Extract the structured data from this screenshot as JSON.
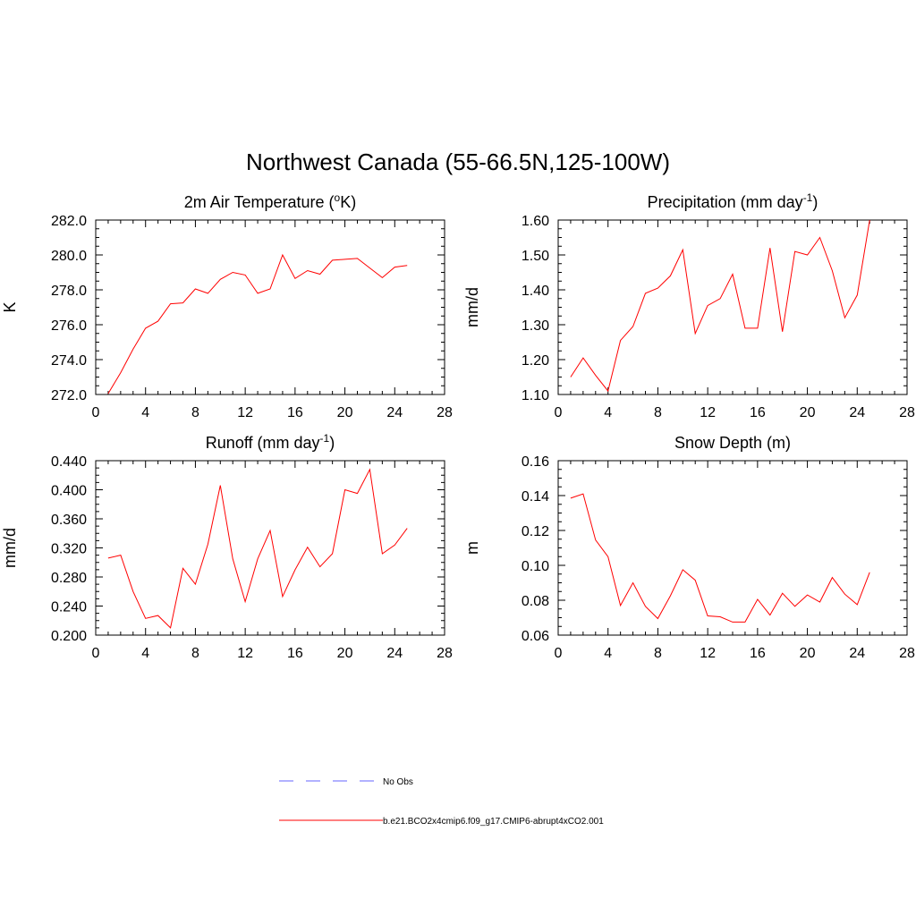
{
  "title": "Northwest Canada (55-66.5N,125-100W)",
  "colors": {
    "series": "#ff0000",
    "obs": "#9999ff",
    "axis": "#000000"
  },
  "legend": {
    "entries": [
      {
        "label": "No Obs",
        "style": "dashed",
        "color": "#9999ff"
      },
      {
        "label": "b.e21.BCO2x4cmip6.f09_g17.CMIP6-abrupt4xCO2.001",
        "style": "solid",
        "color": "#ff0000"
      }
    ]
  },
  "chart_data": [
    {
      "type": "line",
      "title": "2m Air Temperature (",
      "title_sup": "o",
      "title_end": "K)",
      "ylabel": "K",
      "xlim": [
        0,
        28
      ],
      "ylim": [
        272.0,
        282.0
      ],
      "xticks": [
        0,
        4,
        8,
        12,
        16,
        20,
        24,
        28
      ],
      "yticks": [
        "272.0",
        "274.0",
        "276.0",
        "278.0",
        "280.0",
        "282.0"
      ],
      "x": [
        1,
        2,
        3,
        4,
        5,
        6,
        7,
        8,
        9,
        10,
        11,
        12,
        13,
        14,
        15,
        16,
        17,
        18,
        19,
        20,
        21,
        22,
        23,
        24,
        25
      ],
      "series": [
        {
          "values": [
            272.05,
            273.25,
            274.6,
            275.8,
            276.2,
            277.2,
            277.25,
            278.05,
            277.8,
            278.6,
            279.0,
            278.85,
            277.8,
            278.05,
            280.0,
            278.65,
            279.1,
            278.9,
            279.7,
            279.75,
            279.8,
            279.25,
            278.7,
            279.3,
            279.4
          ]
        }
      ]
    },
    {
      "type": "line",
      "title": "Precipitation (mm day",
      "title_sup": "-1",
      "title_end": ")",
      "ylabel": "mm/d",
      "xlim": [
        0,
        28
      ],
      "ylim": [
        1.1,
        1.6
      ],
      "xticks": [
        0,
        4,
        8,
        12,
        16,
        20,
        24,
        28
      ],
      "yticks": [
        "1.10",
        "1.20",
        "1.30",
        "1.40",
        "1.50",
        "1.60"
      ],
      "x": [
        1,
        2,
        3,
        4,
        5,
        6,
        7,
        8,
        9,
        10,
        11,
        12,
        13,
        14,
        15,
        16,
        17,
        18,
        19,
        20,
        21,
        22,
        23,
        24,
        25
      ],
      "series": [
        {
          "values": [
            1.15,
            1.205,
            1.155,
            1.11,
            1.255,
            1.295,
            1.39,
            1.405,
            1.44,
            1.515,
            1.275,
            1.355,
            1.375,
            1.445,
            1.29,
            1.29,
            1.52,
            1.28,
            1.51,
            1.5,
            1.55,
            1.455,
            1.32,
            1.385,
            1.6
          ]
        }
      ]
    },
    {
      "type": "line",
      "title": "Runoff (mm day",
      "title_sup": "-1",
      "title_end": ")",
      "ylabel": "mm/d",
      "xlim": [
        0,
        28
      ],
      "ylim": [
        0.2,
        0.44
      ],
      "xticks": [
        0,
        4,
        8,
        12,
        16,
        20,
        24,
        28
      ],
      "yticks": [
        "0.200",
        "0.240",
        "0.280",
        "0.320",
        "0.360",
        "0.400",
        "0.440"
      ],
      "x": [
        1,
        2,
        3,
        4,
        5,
        6,
        7,
        8,
        9,
        10,
        11,
        12,
        13,
        14,
        15,
        16,
        17,
        18,
        19,
        20,
        21,
        22,
        23,
        24,
        25
      ],
      "series": [
        {
          "values": [
            0.306,
            0.31,
            0.26,
            0.223,
            0.227,
            0.21,
            0.292,
            0.27,
            0.325,
            0.406,
            0.305,
            0.246,
            0.305,
            0.344,
            0.253,
            0.29,
            0.321,
            0.294,
            0.312,
            0.4,
            0.395,
            0.428,
            0.312,
            0.324,
            0.347
          ]
        }
      ]
    },
    {
      "type": "line",
      "title": "Snow Depth (m)",
      "title_sup": "",
      "title_end": "",
      "ylabel": "m",
      "xlim": [
        0,
        28
      ],
      "ylim": [
        0.06,
        0.16
      ],
      "xticks": [
        0,
        4,
        8,
        12,
        16,
        20,
        24,
        28
      ],
      "yticks": [
        "0.06",
        "0.08",
        "0.10",
        "0.12",
        "0.14",
        "0.16"
      ],
      "x": [
        1,
        2,
        3,
        4,
        5,
        6,
        7,
        8,
        9,
        10,
        11,
        12,
        13,
        14,
        15,
        16,
        17,
        18,
        19,
        20,
        21,
        22,
        23,
        24,
        25
      ],
      "series": [
        {
          "values": [
            0.1385,
            0.141,
            0.1145,
            0.105,
            0.077,
            0.09,
            0.0765,
            0.0695,
            0.0825,
            0.0975,
            0.0915,
            0.071,
            0.0705,
            0.0675,
            0.0675,
            0.0805,
            0.0715,
            0.084,
            0.0765,
            0.083,
            0.079,
            0.093,
            0.0835,
            0.0775,
            0.096
          ]
        }
      ]
    }
  ]
}
